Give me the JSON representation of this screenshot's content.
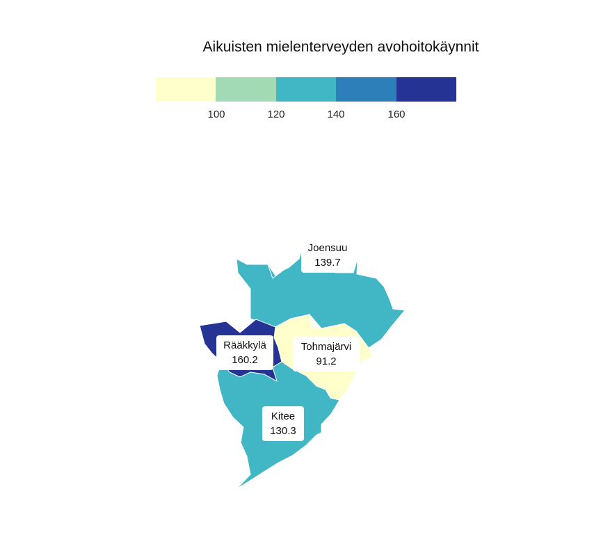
{
  "title": "Aikuisten mielenterveyden avohoitokäynnit",
  "legend": {
    "colors": [
      "#ffffcc",
      "#a1dab4",
      "#41b6c4",
      "#2c7fb8",
      "#253494"
    ],
    "ticks": [
      "100",
      "120",
      "140",
      "160"
    ]
  },
  "regions": [
    {
      "name": "Joensuu",
      "value": "139.7",
      "color": "#41b6c4"
    },
    {
      "name": "Rääkkylä",
      "value": "160.2",
      "color": "#253494"
    },
    {
      "name": "Tohmajärvi",
      "value": "91.2",
      "color": "#ffffcc"
    },
    {
      "name": "Kitee",
      "value": "130.3",
      "color": "#41b6c4"
    }
  ]
}
